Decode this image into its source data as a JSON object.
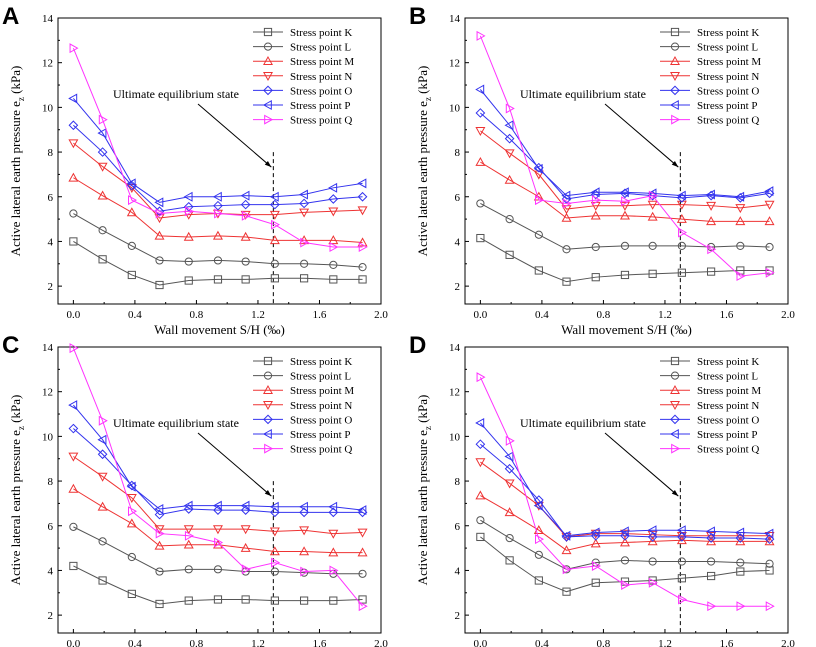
{
  "chart_data": {
    "type": "line",
    "x": [
      0.0,
      0.19,
      0.38,
      0.56,
      0.75,
      0.94,
      1.12,
      1.31,
      1.5,
      1.69,
      1.88
    ],
    "xlabel": "Wall movement S/H (‰)",
    "ylabel": "Active lateral earth pressure e",
    "ylabel_sub": "z",
    "ylabel_unit": " (kPa)",
    "xlim": [
      -0.1,
      2.0
    ],
    "ylim": [
      1.2,
      14
    ],
    "xticks": [
      "0.0",
      "0.4",
      "0.8",
      "1.2",
      "1.6",
      "2.0"
    ],
    "xtick_values": [
      0.0,
      0.4,
      0.8,
      1.2,
      1.6,
      2.0
    ],
    "yticks": [
      "2",
      "4",
      "6",
      "8",
      "10",
      "12",
      "14"
    ],
    "ytick_values": [
      2,
      4,
      6,
      8,
      10,
      12,
      14
    ],
    "annotation": "Ultimate equilibrium state",
    "limit_x": 1.3,
    "series_style": [
      {
        "name": "Stress point K",
        "color": "#555555",
        "marker": "square"
      },
      {
        "name": "Stress point L",
        "color": "#555555",
        "marker": "circle"
      },
      {
        "name": "Stress point M",
        "color": "#ee3333",
        "marker": "triangle-up"
      },
      {
        "name": "Stress point N",
        "color": "#ee3333",
        "marker": "triangle-down"
      },
      {
        "name": "Stress point O",
        "color": "#3333ee",
        "marker": "diamond"
      },
      {
        "name": "Stress point P",
        "color": "#3333ee",
        "marker": "triangle-left"
      },
      {
        "name": "Stress point Q",
        "color": "#ff33ff",
        "marker": "triangle-right"
      }
    ],
    "panels": [
      {
        "label": "A",
        "series": [
          {
            "name": "Stress point K",
            "values": [
              4.0,
              3.2,
              2.5,
              2.05,
              2.25,
              2.3,
              2.3,
              2.35,
              2.35,
              2.3,
              2.3
            ]
          },
          {
            "name": "Stress point L",
            "values": [
              5.25,
              4.5,
              3.8,
              3.15,
              3.1,
              3.15,
              3.1,
              3.0,
              3.0,
              2.95,
              2.85
            ]
          },
          {
            "name": "Stress point M",
            "values": [
              6.85,
              6.05,
              5.3,
              4.25,
              4.2,
              4.25,
              4.2,
              4.05,
              4.05,
              4.05,
              3.95
            ]
          },
          {
            "name": "Stress point N",
            "values": [
              8.4,
              7.35,
              6.4,
              5.05,
              5.2,
              5.25,
              5.2,
              5.2,
              5.3,
              5.35,
              5.4
            ]
          },
          {
            "name": "Stress point O",
            "values": [
              9.2,
              8.0,
              6.5,
              5.35,
              5.55,
              5.6,
              5.65,
              5.65,
              5.7,
              5.9,
              6.0
            ]
          },
          {
            "name": "Stress point P",
            "values": [
              10.4,
              8.85,
              6.6,
              5.75,
              6.0,
              6.0,
              6.05,
              6.0,
              6.1,
              6.4,
              6.6
            ]
          },
          {
            "name": "Stress point Q",
            "values": [
              12.65,
              9.45,
              5.85,
              5.25,
              5.35,
              5.25,
              5.15,
              4.75,
              3.95,
              3.75,
              3.75
            ]
          }
        ]
      },
      {
        "label": "B",
        "series": [
          {
            "name": "Stress point K",
            "values": [
              4.15,
              3.4,
              2.7,
              2.2,
              2.4,
              2.5,
              2.55,
              2.6,
              2.65,
              2.7,
              2.7
            ]
          },
          {
            "name": "Stress point L",
            "values": [
              5.7,
              5.0,
              4.3,
              3.65,
              3.75,
              3.8,
              3.8,
              3.8,
              3.75,
              3.8,
              3.75
            ]
          },
          {
            "name": "Stress point M",
            "values": [
              7.55,
              6.75,
              6.0,
              5.05,
              5.15,
              5.15,
              5.1,
              5.0,
              4.9,
              4.9,
              4.9
            ]
          },
          {
            "name": "Stress point N",
            "values": [
              8.95,
              7.95,
              7.0,
              5.45,
              5.6,
              5.6,
              5.65,
              5.65,
              5.6,
              5.5,
              5.65
            ]
          },
          {
            "name": "Stress point O",
            "values": [
              9.75,
              8.6,
              7.3,
              5.9,
              6.1,
              6.15,
              6.05,
              5.95,
              6.05,
              5.95,
              6.15
            ]
          },
          {
            "name": "Stress point P",
            "values": [
              10.8,
              9.2,
              7.25,
              6.05,
              6.2,
              6.2,
              6.15,
              6.05,
              6.1,
              6.0,
              6.25
            ]
          },
          {
            "name": "Stress point Q",
            "values": [
              13.2,
              9.95,
              5.85,
              5.7,
              5.85,
              5.8,
              6.05,
              4.4,
              3.65,
              2.45,
              2.6
            ]
          }
        ]
      },
      {
        "label": "C",
        "series": [
          {
            "name": "Stress point K",
            "values": [
              4.2,
              3.55,
              2.95,
              2.5,
              2.65,
              2.7,
              2.7,
              2.65,
              2.65,
              2.65,
              2.7
            ]
          },
          {
            "name": "Stress point L",
            "values": [
              5.95,
              5.3,
              4.6,
              3.95,
              4.05,
              4.05,
              3.95,
              3.95,
              3.9,
              3.85,
              3.85
            ]
          },
          {
            "name": "Stress point M",
            "values": [
              7.65,
              6.85,
              6.1,
              5.1,
              5.15,
              5.15,
              5.0,
              4.85,
              4.85,
              4.8,
              4.8
            ]
          },
          {
            "name": "Stress point N",
            "values": [
              9.1,
              8.2,
              7.25,
              5.85,
              5.85,
              5.85,
              5.85,
              5.75,
              5.8,
              5.65,
              5.7
            ]
          },
          {
            "name": "Stress point O",
            "values": [
              10.35,
              9.2,
              7.8,
              6.5,
              6.75,
              6.7,
              6.7,
              6.6,
              6.6,
              6.6,
              6.6
            ]
          },
          {
            "name": "Stress point P",
            "values": [
              11.4,
              9.85,
              7.75,
              6.75,
              6.9,
              6.9,
              6.9,
              6.85,
              6.85,
              6.85,
              6.7
            ]
          },
          {
            "name": "Stress point Q",
            "values": [
              13.95,
              10.7,
              6.65,
              5.65,
              5.55,
              5.25,
              4.05,
              4.35,
              3.95,
              4.0,
              2.4
            ]
          }
        ]
      },
      {
        "label": "D",
        "series": [
          {
            "name": "Stress point K",
            "values": [
              5.5,
              4.45,
              3.55,
              3.05,
              3.45,
              3.5,
              3.55,
              3.65,
              3.75,
              3.95,
              4.0
            ]
          },
          {
            "name": "Stress point L",
            "values": [
              6.25,
              5.45,
              4.7,
              4.05,
              4.35,
              4.45,
              4.4,
              4.4,
              4.4,
              4.35,
              4.3
            ]
          },
          {
            "name": "Stress point M",
            "values": [
              7.35,
              6.6,
              5.8,
              4.9,
              5.2,
              5.25,
              5.3,
              5.35,
              5.3,
              5.3,
              5.3
            ]
          },
          {
            "name": "Stress point N",
            "values": [
              8.85,
              7.9,
              6.9,
              5.5,
              5.65,
              5.65,
              5.6,
              5.55,
              5.55,
              5.55,
              5.55
            ]
          },
          {
            "name": "Stress point O",
            "values": [
              9.65,
              8.55,
              7.15,
              5.5,
              5.55,
              5.55,
              5.5,
              5.5,
              5.45,
              5.45,
              5.4
            ]
          },
          {
            "name": "Stress point P",
            "values": [
              10.6,
              9.1,
              6.9,
              5.55,
              5.7,
              5.75,
              5.8,
              5.8,
              5.75,
              5.7,
              5.65
            ]
          },
          {
            "name": "Stress point Q",
            "values": [
              12.65,
              9.8,
              5.4,
              4.05,
              4.2,
              3.35,
              3.45,
              2.7,
              2.4,
              2.4,
              2.4
            ]
          }
        ]
      }
    ]
  }
}
